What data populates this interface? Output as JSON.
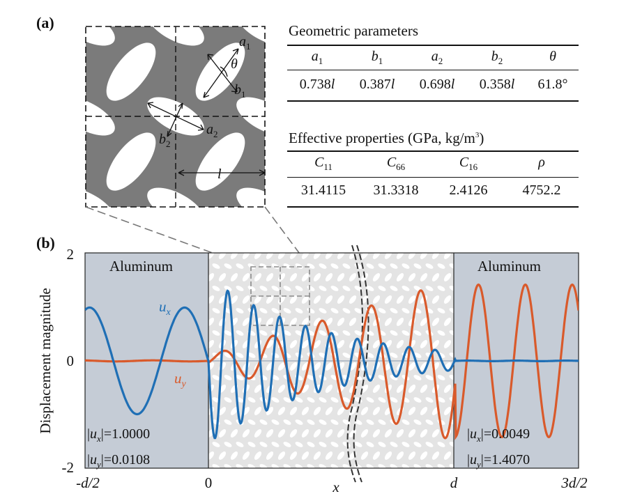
{
  "panel_labels": {
    "a": "(a)",
    "b": "(b)"
  },
  "unit_cell_labels": {
    "a1": "a",
    "a1_sub": "1",
    "b1": "b",
    "b1_sub": "1",
    "a2": "a",
    "a2_sub": "2",
    "b2": "b",
    "b2_sub": "2",
    "theta": "θ",
    "l": "l"
  },
  "geometric_table": {
    "title": "Geometric parameters",
    "headers": [
      {
        "sym": "a",
        "sub": "1"
      },
      {
        "sym": "b",
        "sub": "1"
      },
      {
        "sym": "a",
        "sub": "2"
      },
      {
        "sym": "b",
        "sub": "2"
      },
      {
        "sym": "θ",
        "sub": ""
      }
    ],
    "values": [
      "0.738",
      "0.387",
      "0.698",
      "0.358",
      "61.8°"
    ],
    "value_suffix": [
      "l",
      "l",
      "l",
      "l",
      ""
    ]
  },
  "effective_table": {
    "title": "Effective properties (GPa, kg/m",
    "title_sup": "3",
    "title_end": ")",
    "headers": [
      {
        "sym": "C",
        "sub": "11"
      },
      {
        "sym": "C",
        "sub": "66"
      },
      {
        "sym": "C",
        "sub": "16"
      },
      {
        "sym": "ρ",
        "sub": ""
      }
    ],
    "values": [
      "31.4115",
      "31.3318",
      "2.4126",
      "4752.2"
    ]
  },
  "plot": {
    "ylabel": "Displacement magnitude",
    "yticks": [
      "2",
      "0",
      "-2"
    ],
    "xticks": [
      "-d/2",
      "0",
      "d",
      "3d/2"
    ],
    "x_marker": "x",
    "left_region": "Aluminum",
    "right_region": "Aluminum",
    "ux_label": "u",
    "ux_sub": "x",
    "uy_label": "u",
    "uy_sub": "y",
    "left_readout": {
      "ux": "=1.0000",
      "uy": "=0.0108"
    },
    "right_readout": {
      "ux": "=0.0049",
      "uy": "=1.4070"
    },
    "colors": {
      "ux": "#1f6fb5",
      "uy": "#d95a2b",
      "aluminum": "#c5ccd6",
      "metamaterial": "#e4e4e4"
    }
  },
  "chart_data": {
    "type": "line",
    "xlabel": "",
    "ylabel": "Displacement magnitude",
    "ylim": [
      -2,
      2
    ],
    "x_ticks": [
      "-d/2",
      "0",
      "d",
      "3d/2"
    ],
    "series": [
      {
        "name": "u_x",
        "description_of_shape": "oscillation amplitude ~1.0 in left aluminum, peaks ~1.3 in metamaterial, decays to ~0 in right aluminum",
        "points": [
          [
            -0.5,
            0.95
          ],
          [
            -0.42,
            0.05
          ],
          [
            -0.33,
            -1.05
          ],
          [
            -0.2,
            -0.05
          ],
          [
            -0.07,
            0.97
          ],
          [
            0.0,
            0.2
          ],
          [
            0.05,
            -1.45
          ],
          [
            0.12,
            1.37
          ],
          [
            0.18,
            -1.4
          ],
          [
            0.26,
            1.27
          ],
          [
            0.33,
            -1.3
          ],
          [
            0.42,
            1.1
          ],
          [
            0.5,
            -1.0
          ],
          [
            0.6,
            0.9
          ],
          [
            0.7,
            -0.5
          ],
          [
            0.8,
            0.4
          ],
          [
            0.9,
            -0.2
          ],
          [
            1.0,
            -0.02
          ],
          [
            1.5,
            -0.01
          ]
        ]
      },
      {
        "name": "u_y",
        "description_of_shape": "near-zero in left aluminum, grows in metamaterial, amplitude ~1.4 in right aluminum",
        "points": [
          [
            -0.5,
            0.01
          ],
          [
            0.0,
            0.0
          ],
          [
            0.1,
            0.3
          ],
          [
            0.2,
            -0.4
          ],
          [
            0.3,
            0.6
          ],
          [
            0.4,
            -0.8
          ],
          [
            0.5,
            0.9
          ],
          [
            0.6,
            -1.1
          ],
          [
            0.7,
            1.1
          ],
          [
            0.8,
            -1.2
          ],
          [
            0.9,
            1.3
          ],
          [
            1.0,
            -1.45
          ],
          [
            1.1,
            1.4
          ],
          [
            1.2,
            -1.4
          ],
          [
            1.3,
            1.4
          ],
          [
            1.4,
            -1.45
          ],
          [
            1.5,
            0.3
          ]
        ]
      }
    ]
  }
}
